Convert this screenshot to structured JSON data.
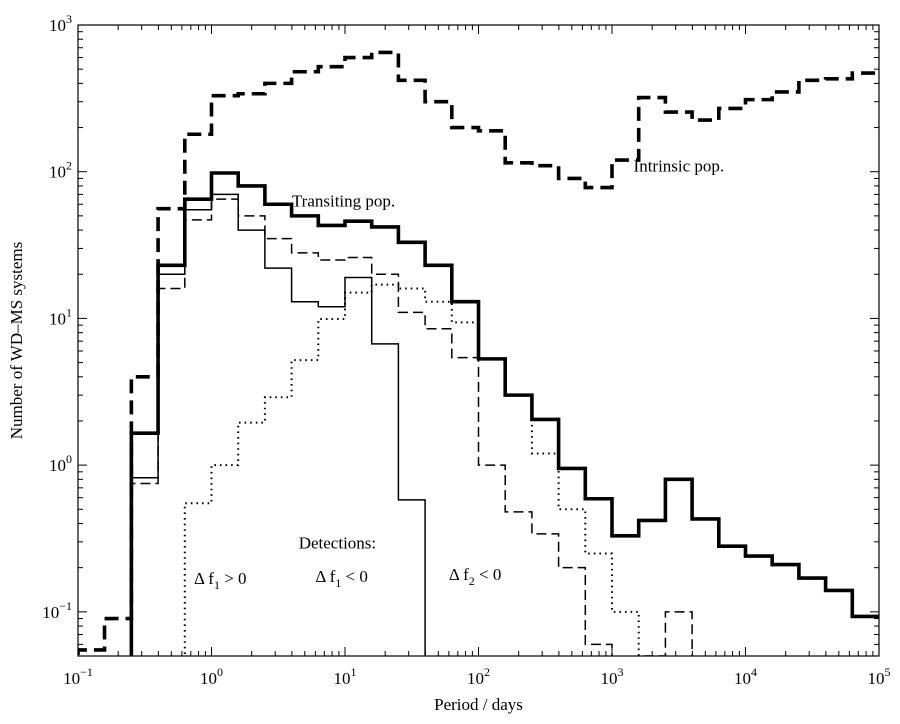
{
  "chart_data": {
    "type": "line",
    "drawstyle": "step-post",
    "title": "",
    "xlabel": "Period / days",
    "ylabel": "Number of WD–MS systems",
    "xscale": "log",
    "yscale": "log",
    "xlim": [
      0.1,
      100000
    ],
    "ylim": [
      0.05,
      1000
    ],
    "x_ticks": [
      {
        "value": 0.1,
        "base": "10",
        "exp": "−1"
      },
      {
        "value": 1,
        "base": "10",
        "exp": "0"
      },
      {
        "value": 10,
        "base": "10",
        "exp": "1"
      },
      {
        "value": 100,
        "base": "10",
        "exp": "2"
      },
      {
        "value": 1000,
        "base": "10",
        "exp": "3"
      },
      {
        "value": 10000,
        "base": "10",
        "exp": "4"
      },
      {
        "value": 100000,
        "base": "10",
        "exp": "5"
      }
    ],
    "y_ticks": [
      {
        "value": 0.1,
        "base": "10",
        "exp": "−1"
      },
      {
        "value": 1,
        "base": "10",
        "exp": "0"
      },
      {
        "value": 10,
        "base": "10",
        "exp": "1"
      },
      {
        "value": 100,
        "base": "10",
        "exp": "2"
      },
      {
        "value": 1000,
        "base": "10",
        "exp": "3"
      }
    ],
    "bin_edges": [
      0.1,
      0.158,
      0.251,
      0.398,
      0.631,
      1.0,
      1.585,
      2.512,
      3.981,
      6.31,
      10.0,
      15.85,
      25.12,
      39.81,
      63.1,
      100.0,
      158.5,
      251.2,
      398.1,
      631.0,
      1000.0,
      1585.0,
      2512.0,
      3981.0,
      6310.0,
      10000.0,
      15850.0,
      25120.0,
      39810.0,
      63100.0,
      100000.0
    ],
    "series": [
      {
        "name": "Intrinsic pop.",
        "style": "thick-dashed",
        "values": [
          0.055,
          0.09,
          4.0,
          56,
          180,
          330,
          340,
          400,
          480,
          520,
          600,
          650,
          420,
          300,
          200,
          190,
          115,
          110,
          90,
          78,
          120,
          320,
          255,
          225,
          270,
          310,
          350,
          420,
          430,
          470
        ]
      },
      {
        "name": "Transiting pop.",
        "style": "thick-solid",
        "values": [
          0.04,
          0.04,
          1.65,
          23,
          65,
          98,
          80,
          60,
          50,
          43,
          46,
          42,
          33,
          23,
          13,
          5.3,
          3.0,
          2.05,
          0.95,
          0.59,
          0.33,
          0.42,
          0.8,
          0.43,
          0.28,
          0.24,
          0.21,
          0.17,
          0.14,
          0.093
        ]
      },
      {
        "name": "Detections: Δ f1 < 0",
        "style": "thin-solid",
        "values": [
          0.04,
          0.04,
          0.82,
          20,
          55,
          70,
          40,
          22,
          13,
          12,
          19,
          6.7,
          0.58,
          0.045,
          0.04,
          0.04,
          0.04,
          0.04,
          0.04,
          0.04,
          0.04,
          0.04,
          0.04,
          0.04,
          0.04,
          0.04,
          0.04,
          0.04,
          0.04,
          0.04
        ]
      },
      {
        "name": "Δ f2 < 0",
        "style": "thin-dashed",
        "values": [
          0.04,
          0.04,
          0.75,
          16,
          47,
          65,
          50,
          35,
          28,
          25,
          26,
          20,
          11,
          8.5,
          5.4,
          1.0,
          0.48,
          0.34,
          0.2,
          0.06,
          0.046,
          0.05,
          0.1,
          0.045,
          0.04,
          0.04,
          0.04,
          0.04,
          0.04,
          0.04
        ]
      },
      {
        "name": "Δ f1 > 0",
        "style": "dotted",
        "values": [
          0.04,
          0.04,
          0.04,
          0.04,
          0.55,
          1.0,
          1.95,
          2.9,
          5.2,
          9.9,
          15,
          17,
          16,
          13,
          9.4,
          5.3,
          3.0,
          1.2,
          0.5,
          0.25,
          0.1,
          0.04,
          0.04,
          0.04,
          0.04,
          0.04,
          0.04,
          0.04,
          0.04,
          0.04
        ]
      }
    ],
    "annotations": [
      {
        "key": "intrinsic",
        "text": "Intrinsic pop.",
        "x": 1450,
        "y": 100
      },
      {
        "key": "transiting",
        "text": "Transiting pop.",
        "x": 4.0,
        "y": 58
      },
      {
        "key": "detections",
        "text": "Detections:",
        "x": 4.5,
        "y": 0.27
      },
      {
        "key": "df1neg",
        "text": "Δ f",
        "sub": "1",
        "tail": " < 0",
        "x": 6.0,
        "y": 0.16
      },
      {
        "key": "df1pos",
        "text": "Δ f",
        "sub": "1",
        "tail": " > 0",
        "x": 0.74,
        "y": 0.155
      },
      {
        "key": "df2neg",
        "text": "Δ f",
        "sub": "2",
        "tail": " < 0",
        "x": 60,
        "y": 0.165
      }
    ]
  }
}
